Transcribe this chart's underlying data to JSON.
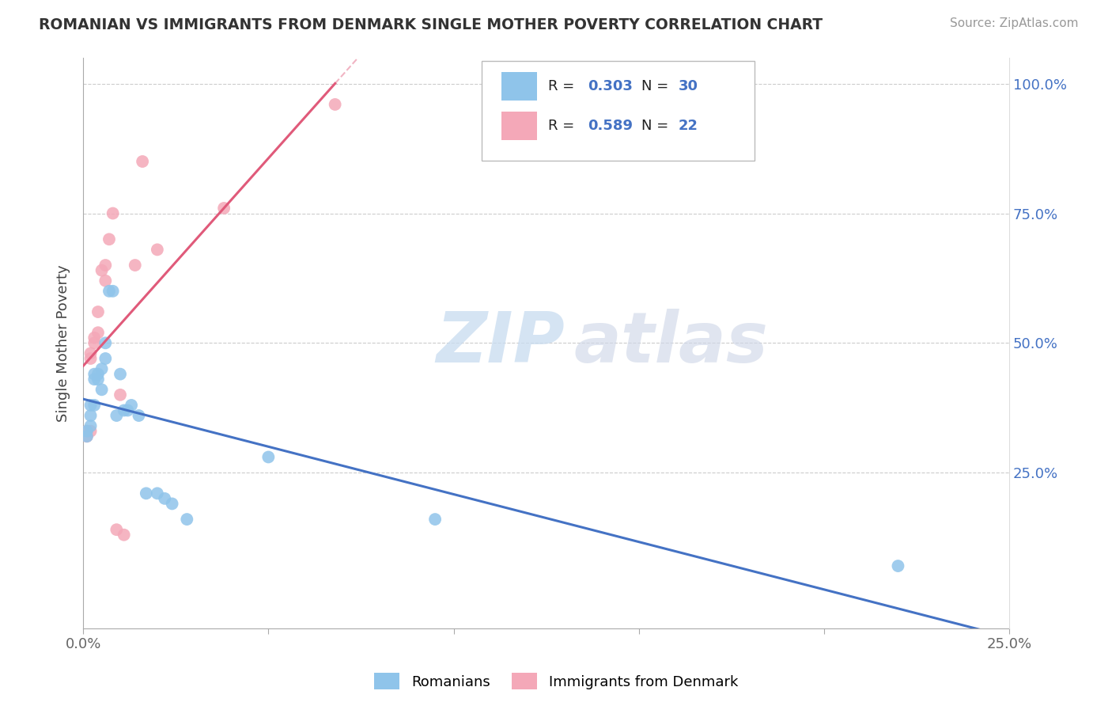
{
  "title": "ROMANIAN VS IMMIGRANTS FROM DENMARK SINGLE MOTHER POVERTY CORRELATION CHART",
  "source": "Source: ZipAtlas.com",
  "ylabel": "Single Mother Poverty",
  "legend_romanian": "Romanians",
  "legend_denmark": "Immigrants from Denmark",
  "r_romanian": "0.303",
  "n_romanian": "30",
  "r_denmark": "0.589",
  "n_denmark": "22",
  "watermark": "ZIPatlas",
  "romanian_color": "#8FC4EA",
  "denmark_color": "#F4A8B8",
  "romanian_line_color": "#4472C4",
  "denmark_line_color": "#E05A7A",
  "background_color": "#FFFFFF",
  "grid_color": "#CCCCCC",
  "romanian_scatter_x": [
    0.001,
    0.001,
    0.002,
    0.002,
    0.002,
    0.003,
    0.003,
    0.003,
    0.004,
    0.004,
    0.005,
    0.005,
    0.006,
    0.006,
    0.007,
    0.008,
    0.009,
    0.01,
    0.011,
    0.012,
    0.013,
    0.015,
    0.017,
    0.02,
    0.022,
    0.024,
    0.028,
    0.05,
    0.095,
    0.22
  ],
  "romanian_scatter_y": [
    0.33,
    0.32,
    0.38,
    0.36,
    0.34,
    0.44,
    0.43,
    0.38,
    0.44,
    0.43,
    0.45,
    0.41,
    0.5,
    0.47,
    0.6,
    0.6,
    0.36,
    0.44,
    0.37,
    0.37,
    0.38,
    0.36,
    0.21,
    0.21,
    0.2,
    0.19,
    0.16,
    0.28,
    0.16,
    0.07
  ],
  "denmark_scatter_x": [
    0.001,
    0.001,
    0.002,
    0.002,
    0.002,
    0.003,
    0.003,
    0.004,
    0.004,
    0.005,
    0.006,
    0.006,
    0.007,
    0.008,
    0.009,
    0.01,
    0.011,
    0.014,
    0.016,
    0.02,
    0.038,
    0.068
  ],
  "denmark_scatter_y": [
    0.33,
    0.32,
    0.48,
    0.47,
    0.33,
    0.51,
    0.5,
    0.52,
    0.56,
    0.64,
    0.62,
    0.65,
    0.7,
    0.75,
    0.14,
    0.4,
    0.13,
    0.65,
    0.85,
    0.68,
    0.76,
    0.96
  ]
}
